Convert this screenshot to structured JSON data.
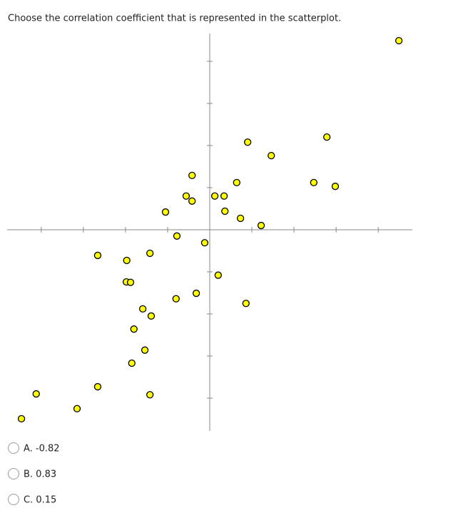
{
  "question": "Choose the correlation coefficient that is represented in the scatterplot.",
  "chart_data": {
    "type": "scatter",
    "color": "#ffff00",
    "xlim": [
      -4.81,
      4.81
    ],
    "ylim": [
      -4.78,
      4.66
    ],
    "xticks": [
      -4,
      -3,
      -2,
      -1,
      0,
      1,
      2,
      3,
      4
    ],
    "yticks": [
      -4,
      -3,
      -2,
      -1,
      0,
      1,
      2,
      3,
      4
    ],
    "x": [
      4.49,
      2.78,
      0.9,
      1.46,
      -0.42,
      0.64,
      2.47,
      2.98,
      -0.56,
      -0.42,
      0.12,
      0.34,
      -1.05,
      0.36,
      0.73,
      1.22,
      -0.78,
      -0.12,
      -2.66,
      -1.42,
      -1.97,
      0.2,
      -1.98,
      -1.88,
      -0.8,
      -0.32,
      0.86,
      -1.59,
      -1.39,
      -1.8,
      -1.54,
      -1.85,
      -2.66,
      -4.12,
      -1.42,
      -3.15,
      -4.47
    ],
    "values": [
      4.49,
      2.2,
      2.08,
      1.76,
      1.29,
      1.12,
      1.12,
      1.03,
      0.8,
      0.68,
      0.8,
      0.8,
      0.42,
      0.44,
      0.27,
      0.1,
      -0.15,
      -0.31,
      -0.61,
      -0.56,
      -0.73,
      -1.08,
      -1.24,
      -1.25,
      -1.64,
      -1.51,
      -1.75,
      -1.88,
      -2.05,
      -2.36,
      -2.86,
      -3.17,
      -3.73,
      -3.9,
      -3.92,
      -4.25,
      -4.49
    ]
  },
  "options": [
    "A. -0.82",
    "B. 0.83",
    "C. 0.15"
  ]
}
